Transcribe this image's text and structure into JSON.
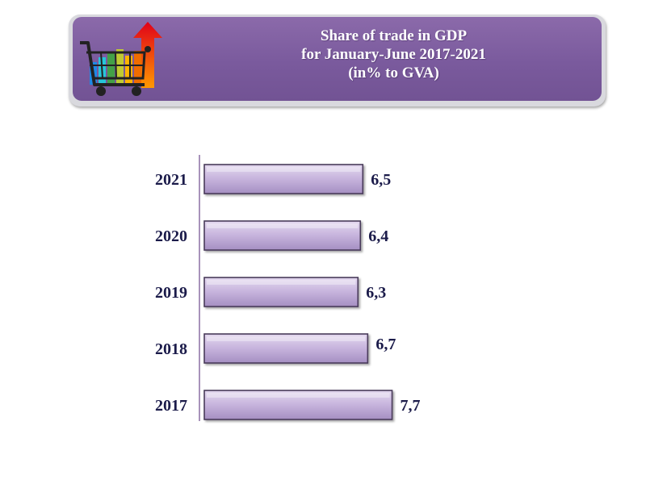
{
  "header": {
    "title_lines": [
      "Share of trade in GDP",
      "for January-June 2017-2021",
      "(in% to GVA)"
    ]
  },
  "logo": {
    "icon": "shopping-cart-growth-icon"
  },
  "colors": {
    "header_bg": "#7a5a9d",
    "bar_fill": "#c7b6dd",
    "bar_border": "#4a3a5a",
    "label_text": "#1b1b4a",
    "axis_line": "#6d4a8c"
  },
  "chart_data": {
    "type": "bar",
    "orientation": "horizontal",
    "title": "Share of trade in GDP for January-June 2017-2021 (in% to GVA)",
    "categories": [
      "2021",
      "2020",
      "2019",
      "2018",
      "2017"
    ],
    "values": [
      6.5,
      6.4,
      6.3,
      6.7,
      7.7
    ],
    "value_labels": [
      "6,5",
      "6,4",
      "6,3",
      "6,7",
      "7,7"
    ],
    "xlabel": "",
    "ylabel": "",
    "grid": false,
    "legend": "none"
  }
}
